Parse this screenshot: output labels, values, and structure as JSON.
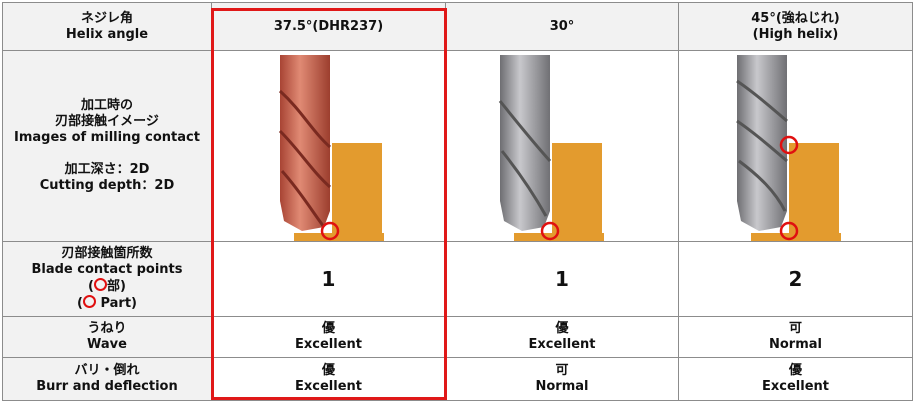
{
  "header": {
    "label": [
      "ネジレ角",
      "Helix angle"
    ],
    "columns": [
      [
        "37.5°(DHR237)"
      ],
      [
        "30°"
      ],
      [
        "45°(強ねじれ)",
        "(High helix)"
      ]
    ]
  },
  "rows": [
    {
      "label_groups": [
        [
          "加工時の",
          "刃部接触イメージ",
          "Images of milling contact"
        ],
        [
          "加工深さ：2D",
          "Cutting depth：2D"
        ]
      ]
    },
    {
      "label": [
        "刃部接触箇所数",
        "Blade contact points"
      ],
      "mark_lines": [
        {
          "before": "(",
          "after": "部)"
        },
        {
          "before": "(",
          "after": " Part)"
        }
      ],
      "cells": [
        [
          "1"
        ],
        [
          "1"
        ],
        [
          "2"
        ]
      ]
    },
    {
      "label": [
        "うねり",
        "Wave"
      ],
      "cells": [
        [
          "優",
          "Excellent"
        ],
        [
          "優",
          "Excellent"
        ],
        [
          "可",
          "Normal"
        ]
      ]
    },
    {
      "label": [
        "バリ・倒れ",
        "Burr and deflection"
      ],
      "cells": [
        [
          "優",
          "Excellent"
        ],
        [
          "可",
          "Normal"
        ],
        [
          "優",
          "Excellent"
        ]
      ]
    }
  ]
}
